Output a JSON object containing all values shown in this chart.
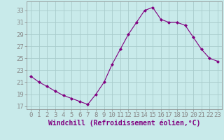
{
  "x": [
    0,
    1,
    2,
    3,
    4,
    5,
    6,
    7,
    8,
    9,
    10,
    11,
    12,
    13,
    14,
    15,
    16,
    17,
    18,
    19,
    20,
    21,
    22,
    23
  ],
  "y": [
    22.0,
    21.0,
    20.3,
    19.5,
    18.8,
    18.3,
    17.8,
    17.3,
    19.0,
    21.0,
    24.0,
    26.5,
    29.0,
    31.0,
    33.0,
    33.5,
    31.5,
    31.0,
    31.0,
    30.5,
    28.5,
    26.5,
    25.0,
    24.5
  ],
  "line_color": "#800080",
  "marker_color": "#800080",
  "bg_color": "#c8eaea",
  "grid_color": "#a8cccc",
  "xlabel": "Windchill (Refroidissement éolien,°C)",
  "xlim": [
    -0.5,
    23.5
  ],
  "ylim": [
    16.5,
    34.5
  ],
  "yticks": [
    17,
    19,
    21,
    23,
    25,
    27,
    29,
    31,
    33
  ],
  "xticks": [
    0,
    1,
    2,
    3,
    4,
    5,
    6,
    7,
    8,
    9,
    10,
    11,
    12,
    13,
    14,
    15,
    16,
    17,
    18,
    19,
    20,
    21,
    22,
    23
  ],
  "tick_fontsize": 6.5,
  "label_fontsize": 7.0,
  "text_color": "#800080"
}
